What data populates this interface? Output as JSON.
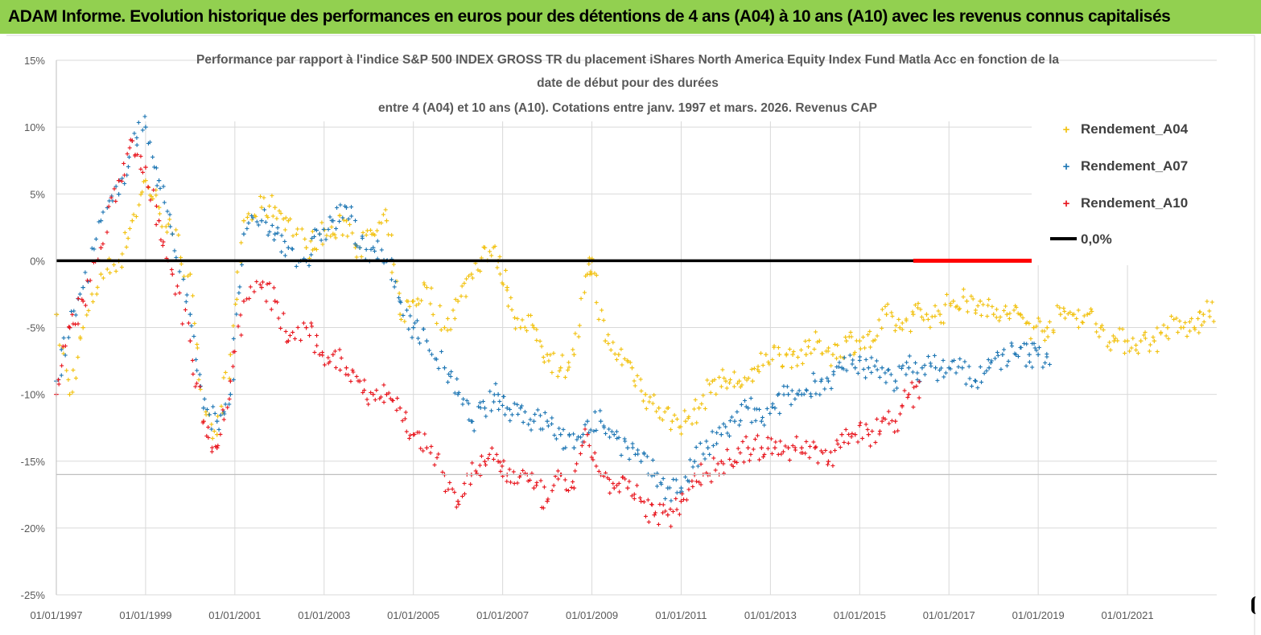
{
  "header": {
    "title": "ADAM Informe. Evolution historique des performances en euros pour des détentions de 4 ans (A04) à 10 ans (A10) avec les revenus connus capitalisés"
  },
  "chart_data": {
    "type": "scatter",
    "title_lines": [
      "Performance par rapport à l'indice S&P 500 INDEX GROSS TR  du placement iShares North America Equity Index Fund Matla Acc en fonction de la",
      "date de début pour des durées",
      "entre 4 (A04) et 10 ans (A10).  Cotations entre janv. 1997 et mars.  2026. Revenus CAP"
    ],
    "xlabel": "",
    "ylabel": "",
    "x_range": [
      1997.0,
      2023.0
    ],
    "ylim": [
      -25,
      15
    ],
    "y_ticks": [
      15,
      10,
      5,
      0,
      -5,
      -10,
      -15,
      -20,
      -25
    ],
    "y_tick_labels": [
      "15%",
      "10%",
      "5%",
      "0%",
      "-5%",
      "-10%",
      "-15%",
      "-20%",
      "-25%"
    ],
    "x_ticks": [
      1997,
      1999,
      2001,
      2003,
      2005,
      2007,
      2009,
      2011,
      2013,
      2015,
      2017,
      2019,
      2021
    ],
    "x_tick_labels": [
      "01/01/1997",
      "01/01/1999",
      "01/01/2001",
      "01/01/2003",
      "01/01/2005",
      "01/01/2007",
      "01/01/2009",
      "01/01/2011",
      "01/01/2013",
      "01/01/2015",
      "01/01/2017",
      "01/01/2019",
      "01/01/2021"
    ],
    "grid": true,
    "legend_position": "right",
    "series": [
      {
        "name": "Rendement_A04",
        "color": "#f2c211",
        "marker": "+",
        "x": [
          1997.0,
          1997.3,
          1997.6,
          1998.0,
          1998.4,
          1998.7,
          1999.0,
          1999.3,
          1999.6,
          2000.0,
          2000.3,
          2000.6,
          2000.9,
          2001.2,
          2001.6,
          2001.9,
          2002.2,
          2002.6,
          2002.9,
          2003.2,
          2003.5,
          2003.8,
          2004.1,
          2004.4,
          2004.7,
          2005.0,
          2005.3,
          2005.7,
          2006.0,
          2006.3,
          2006.6,
          2006.9,
          2007.1,
          2007.4,
          2007.7,
          2008.0,
          2008.3,
          2008.6,
          2008.9,
          2009.0,
          2009.3,
          2009.6,
          2009.9,
          2010.2,
          2010.5,
          2010.8,
          2011.1,
          2011.4,
          2011.7,
          2012.0,
          2012.3,
          2012.6,
          2012.9,
          2013.2,
          2013.5,
          2013.8,
          2014.1,
          2014.4,
          2014.7,
          2015.0,
          2015.3,
          2015.6,
          2015.9,
          2016.2,
          2016.5,
          2016.8,
          2017.1,
          2017.4,
          2017.7,
          2018.0,
          2018.3,
          2018.6,
          2018.9,
          2019.2,
          2019.5,
          2019.8,
          2020.1,
          2020.4,
          2020.7,
          2021.0,
          2021.3,
          2021.6,
          2021.9,
          2022.2,
          2022.5,
          2022.7
        ],
        "y": [
          -4,
          -10,
          -5,
          -1,
          0,
          3,
          6,
          4,
          2,
          -1,
          -12,
          -13,
          -7,
          3,
          4,
          4,
          3,
          1,
          2,
          2,
          3,
          1,
          2,
          3,
          -4,
          -3,
          -2,
          -5,
          -3,
          -1,
          1,
          0,
          -2,
          -5,
          -5,
          -7,
          -8,
          -7,
          -1,
          0,
          -6,
          -7,
          -8,
          -10,
          -11,
          -12,
          -12,
          -11,
          -9,
          -9,
          -9,
          -9,
          -7,
          -7,
          -7,
          -7,
          -6,
          -7,
          -6,
          -6,
          -6,
          -4,
          -5,
          -4,
          -4,
          -4,
          -3,
          -3,
          -3,
          -4,
          -4,
          -4,
          -5,
          -5,
          -4,
          -4,
          -4,
          -5,
          -6,
          -6,
          -6,
          -6,
          -5,
          -5,
          -5,
          -4
        ]
      },
      {
        "name": "Rendement_A07",
        "color": "#1f77b4",
        "marker": "+",
        "x": [
          1997.0,
          1997.3,
          1997.6,
          1998.0,
          1998.4,
          1998.7,
          1999.0,
          1999.3,
          1999.6,
          2000.0,
          2000.3,
          2000.6,
          2000.9,
          2001.2,
          2001.6,
          2001.9,
          2002.2,
          2002.6,
          2002.9,
          2003.2,
          2003.5,
          2003.8,
          2004.1,
          2004.4,
          2004.7,
          2005.0,
          2005.3,
          2005.7,
          2006.0,
          2006.3,
          2006.6,
          2006.9,
          2007.1,
          2007.4,
          2007.7,
          2008.0,
          2008.3,
          2008.6,
          2008.9,
          2009.2,
          2009.5,
          2009.8,
          2010.1,
          2010.4,
          2010.7,
          2011.0,
          2011.3,
          2011.6,
          2011.9,
          2012.2,
          2012.5,
          2012.8,
          2013.1,
          2013.4,
          2013.7,
          2014.0,
          2014.3,
          2014.6,
          2014.9,
          2015.2,
          2015.5,
          2015.8,
          2016.1,
          2016.4,
          2016.7,
          2017.0,
          2017.3,
          2017.6,
          2017.9,
          2018.2,
          2018.5,
          2018.8,
          2019.0
        ],
        "y": [
          -9,
          -5,
          -2,
          3,
          5,
          9,
          10,
          6,
          2,
          -4,
          -11,
          -12,
          -10,
          2,
          3,
          2,
          1,
          0,
          2,
          3,
          4,
          1,
          1,
          0,
          -3,
          -5,
          -6,
          -8,
          -10,
          -12,
          -11,
          -10,
          -11,
          -11,
          -12,
          -12,
          -13,
          -14,
          -12,
          -12,
          -13,
          -14,
          -15,
          -16,
          -17,
          -17,
          -15,
          -14,
          -13,
          -12,
          -11,
          -12,
          -11,
          -10,
          -10,
          -9,
          -9,
          -8,
          -8,
          -8,
          -8,
          -9,
          -8,
          -8,
          -8,
          -8,
          -8,
          -9,
          -8,
          -7,
          -7,
          -7,
          -7
        ]
      },
      {
        "name": "Rendement_A10",
        "color": "#e8171f",
        "marker": "+",
        "x": [
          1997.0,
          1997.3,
          1997.6,
          1998.0,
          1998.4,
          1998.7,
          1999.0,
          1999.3,
          1999.6,
          2000.0,
          2000.3,
          2000.6,
          2000.9,
          2001.2,
          2001.6,
          2001.9,
          2002.2,
          2002.6,
          2002.9,
          2003.2,
          2003.5,
          2003.8,
          2004.1,
          2004.4,
          2004.7,
          2005.0,
          2005.3,
          2005.7,
          2006.0,
          2006.3,
          2006.6,
          2006.9,
          2007.1,
          2007.4,
          2007.7,
          2008.0,
          2008.3,
          2008.6,
          2008.9,
          2009.2,
          2009.5,
          2009.8,
          2010.1,
          2010.4,
          2010.7,
          2011.0,
          2011.3,
          2011.6,
          2011.9,
          2012.2,
          2012.5,
          2012.8,
          2013.1,
          2013.4,
          2013.7,
          2014.0,
          2014.3,
          2014.6,
          2014.9,
          2015.2,
          2015.5,
          2015.8,
          2016.1
        ],
        "y": [
          -10,
          -5,
          -3,
          1,
          6,
          9,
          7,
          3,
          -1,
          -6,
          -12,
          -14,
          -9,
          -3,
          -2,
          -3,
          -6,
          -5,
          -7,
          -7,
          -8,
          -9,
          -10,
          -10,
          -11,
          -13,
          -14,
          -16,
          -18,
          -16,
          -15,
          -15,
          -16,
          -16,
          -17,
          -18,
          -16,
          -17,
          -13,
          -16,
          -17,
          -17,
          -18,
          -19,
          -19,
          -18,
          -16,
          -16,
          -15,
          -15,
          -14,
          -14,
          -14,
          -14,
          -14,
          -14,
          -15,
          -13,
          -13,
          -13,
          -12,
          -12,
          -10
        ]
      }
    ],
    "reference_line": {
      "name": "0,0%",
      "y": 0,
      "color": "#000000",
      "overlay_color": "#ff0000",
      "overlay_x_start": 2016.2
    }
  }
}
